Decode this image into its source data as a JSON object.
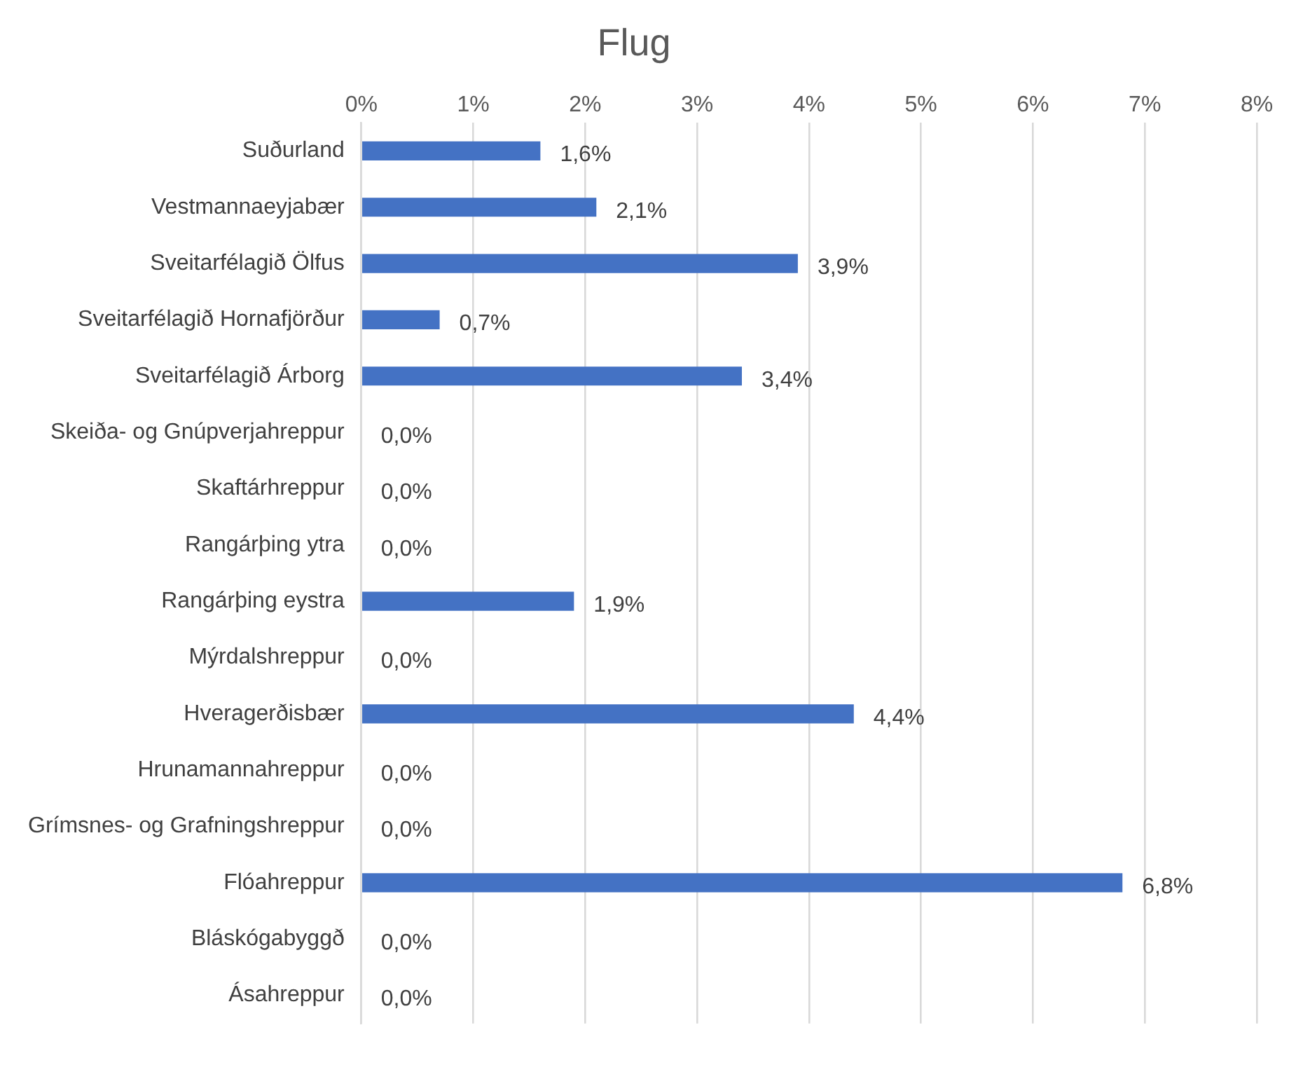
{
  "chart_data": {
    "type": "bar",
    "orientation": "horizontal",
    "title": "Flug",
    "categories": [
      "Suðurland",
      "Vestmannaeyjabær",
      "Sveitarfélagið Ölfus",
      "Sveitarfélagið Hornafjörður",
      "Sveitarfélagið Árborg",
      "Skeiða- og Gnúpverjahreppur",
      "Skaftárhreppur",
      "Rangárþing ytra",
      "Rangárþing eystra",
      "Mýrdalshreppur",
      "Hveragerðisbær",
      "Hrunamannahreppur",
      "Grímsnes- og Grafningshreppur",
      "Flóahreppur",
      "Bláskógabyggð",
      "Ásahreppur"
    ],
    "values": [
      1.6,
      2.1,
      3.9,
      0.7,
      3.4,
      0,
      0,
      0,
      1.9,
      0,
      4.4,
      0,
      0,
      6.8,
      0,
      0
    ],
    "value_labels": [
      "1,6%",
      "2,1%",
      "3,9%",
      "0,7%",
      "3,4%",
      "0,0%",
      "0,0%",
      "0,0%",
      "1,9%",
      "0,0%",
      "4,4%",
      "0,0%",
      "0,0%",
      "6,8%",
      "0,0%",
      "0,0%"
    ],
    "color": "#4472c4",
    "xlim": [
      0,
      8
    ],
    "xticks": [
      {
        "value": 0,
        "label": "0%"
      },
      {
        "value": 1,
        "label": "1%"
      },
      {
        "value": 2,
        "label": "2%"
      },
      {
        "value": 3,
        "label": "3%"
      },
      {
        "value": 4,
        "label": "4%"
      },
      {
        "value": 5,
        "label": "5%"
      },
      {
        "value": 6,
        "label": "6%"
      },
      {
        "value": 7,
        "label": "7%"
      },
      {
        "value": 8,
        "label": "8%"
      }
    ],
    "grid": "x",
    "legend": false
  }
}
